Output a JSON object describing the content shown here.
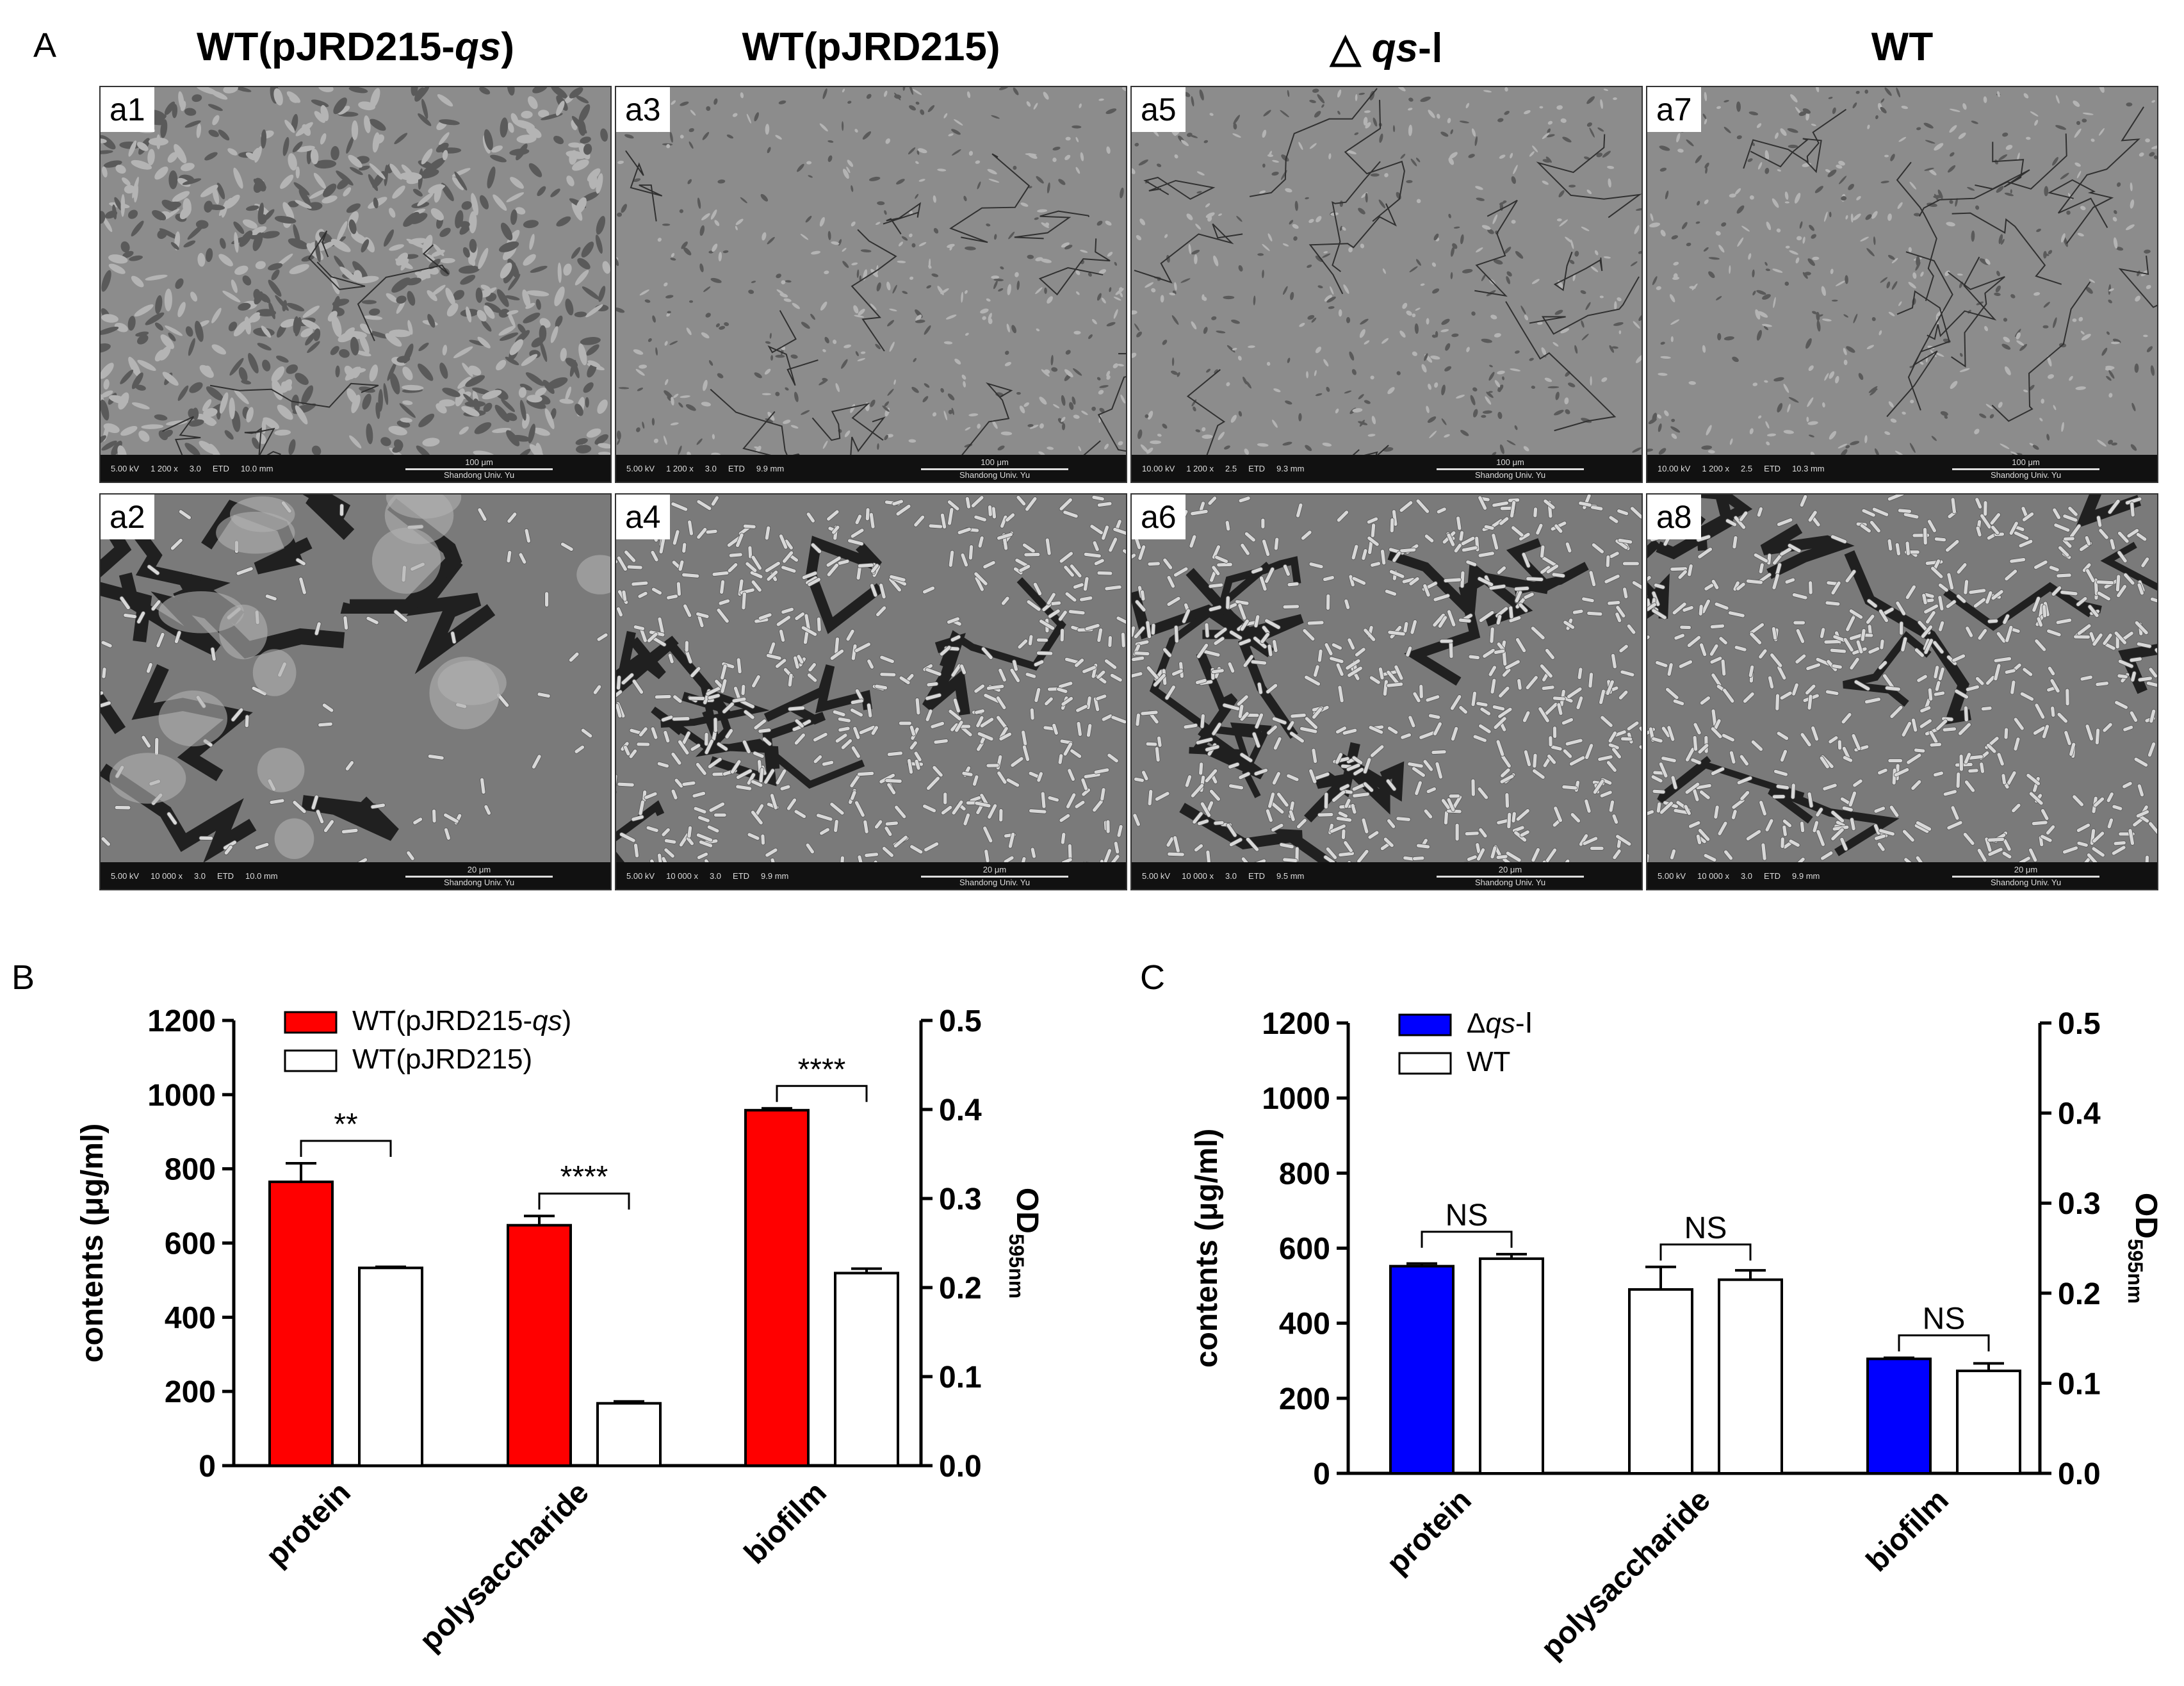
{
  "panel_labels": {
    "A": "A",
    "B": "B",
    "C": "C"
  },
  "panel_a": {
    "columns": [
      {
        "title_pre": "WT(pJRD215-",
        "title_it": "qs",
        "title_post": ")"
      },
      {
        "title_pre": "WT(pJRD215)",
        "title_it": "",
        "title_post": ""
      },
      {
        "title_pre": "△ ",
        "title_it": "qs",
        "title_post": "-Ⅰ"
      },
      {
        "title_pre": "WT",
        "title_it": "",
        "title_post": ""
      }
    ],
    "images": [
      {
        "tag": "a1",
        "hv": "5.00 kV",
        "mag": "1 200 x",
        "spot": "3.0",
        "det": "ETD",
        "wd": "10.0 mm",
        "scale": "100 μm",
        "lab": "Shandong Univ. Yu"
      },
      {
        "tag": "a3",
        "hv": "5.00 kV",
        "mag": "1 200 x",
        "spot": "3.0",
        "det": "ETD",
        "wd": "9.9 mm",
        "scale": "100 μm",
        "lab": "Shandong Univ. Yu"
      },
      {
        "tag": "a5",
        "hv": "10.00 kV",
        "mag": "1 200 x",
        "spot": "2.5",
        "det": "ETD",
        "wd": "9.3 mm",
        "scale": "100 μm",
        "lab": "Shandong Univ. Yu"
      },
      {
        "tag": "a7",
        "hv": "10.00 kV",
        "mag": "1 200 x",
        "spot": "2.5",
        "det": "ETD",
        "wd": "10.3 mm",
        "scale": "100 μm",
        "lab": "Shandong Univ. Yu"
      },
      {
        "tag": "a2",
        "hv": "5.00 kV",
        "mag": "10 000 x",
        "spot": "3.0",
        "det": "ETD",
        "wd": "10.0 mm",
        "scale": "20 μm",
        "lab": "Shandong Univ. Yu"
      },
      {
        "tag": "a4",
        "hv": "5.00 kV",
        "mag": "10 000 x",
        "spot": "3.0",
        "det": "ETD",
        "wd": "9.9 mm",
        "scale": "20 μm",
        "lab": "Shandong Univ. Yu"
      },
      {
        "tag": "a6",
        "hv": "5.00 kV",
        "mag": "10 000 x",
        "spot": "3.0",
        "det": "ETD",
        "wd": "9.5 mm",
        "scale": "20 μm",
        "lab": "Shandong Univ. Yu"
      },
      {
        "tag": "a8",
        "hv": "5.00 kV",
        "mag": "10 000 x",
        "spot": "3.0",
        "det": "ETD",
        "wd": "9.9 mm",
        "scale": "20 μm",
        "lab": "Shandong Univ. Yu"
      }
    ],
    "colors": {
      "low_mag": "#8c8c8c",
      "high_mag": "#7a7a7a"
    }
  },
  "chart_data": [
    {
      "panel": "B",
      "type": "bar",
      "categories": [
        "protein",
        "polysaccharide",
        "biofilm"
      ],
      "ylabel": "contents (μg/ml)",
      "y2label": "OD",
      "y2label_sub": "595nm",
      "ylim": [
        0,
        1200
      ],
      "y2lim": [
        0,
        0.5
      ],
      "yticks": [
        "0",
        "200",
        "400",
        "600",
        "800",
        "1000",
        "1200"
      ],
      "y2ticks": [
        "0.0",
        "0.1",
        "0.2",
        "0.3",
        "0.4",
        "0.5"
      ],
      "series": [
        {
          "name_pre": "WT(pJRD215-",
          "name_it": "qs",
          "name_post": ")",
          "color": "#ff0000",
          "values": [
            765,
            648,
            958
          ],
          "errors": [
            50,
            25,
            5
          ]
        },
        {
          "name_pre": "WT(pJRD215)",
          "name_it": "",
          "name_post": "",
          "color": "#ffffff",
          "values": [
            533,
            168,
            519
          ],
          "errors": [
            3,
            5,
            12
          ]
        }
      ],
      "significance": [
        "**",
        "****",
        "****"
      ],
      "grid": false,
      "legend": "top-left"
    },
    {
      "panel": "C",
      "type": "bar",
      "categories": [
        "protein",
        "polysaccharide",
        "biofilm"
      ],
      "ylabel": "contents (μg/ml)",
      "y2label": "OD",
      "y2label_sub": "595nm",
      "ylim": [
        0,
        1200
      ],
      "y2lim": [
        0,
        0.5
      ],
      "yticks": [
        "0",
        "200",
        "400",
        "600",
        "800",
        "1000",
        "1200"
      ],
      "y2ticks": [
        "0.0",
        "0.1",
        "0.2",
        "0.3",
        "0.4",
        "0.5"
      ],
      "series": [
        {
          "name_pre": "Δ",
          "name_it": "qs",
          "name_post": "-Ⅰ",
          "color": "#0000ff",
          "values": [
            552,
            490,
            305
          ],
          "errors": [
            7,
            60,
            3
          ]
        },
        {
          "name_pre": "WT",
          "name_it": "",
          "name_post": "",
          "color": "#ffffff",
          "values": [
            572,
            516,
            273
          ],
          "errors": [
            12,
            25,
            20
          ]
        }
      ],
      "first_series_colors": [
        "#0000ff",
        "#ffffff",
        "#0000ff"
      ],
      "significance": [
        "NS",
        "NS",
        "NS"
      ],
      "grid": false,
      "legend": "top-left"
    }
  ]
}
